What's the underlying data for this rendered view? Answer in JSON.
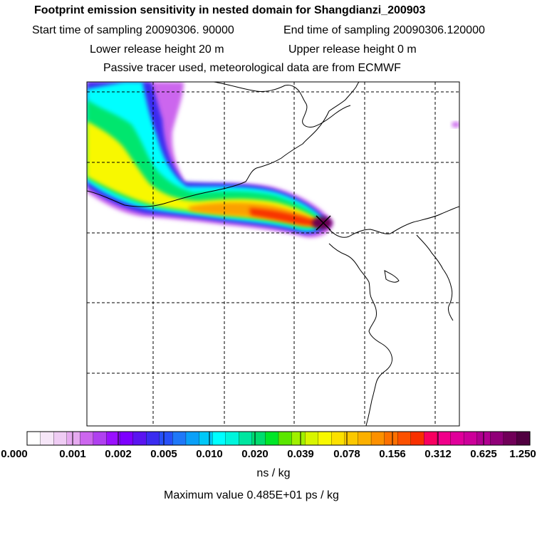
{
  "header": {
    "title": "Footprint emission sensitivity in nested domain for Shangdianzi_200903",
    "start_time": "Start time of sampling 20090306. 90000",
    "end_time": "End time of sampling 20090306.120000",
    "lower_height": "Lower release height   20 m",
    "upper_height": "Upper release height    0 m",
    "tracer_note": "Passive tracer used, meteorological data are from ECMWF"
  },
  "colorbar": {
    "ticks": [
      "0.000",
      "0.001",
      "0.002",
      "0.005",
      "0.010",
      "0.020",
      "0.039",
      "0.078",
      "0.156",
      "0.312",
      "0.625",
      "1.250"
    ],
    "units": "ns / kg",
    "colors": [
      "#ffffff",
      "#f6e6f8",
      "#efccf4",
      "#e6aaf0",
      "#cc66ee",
      "#b040f0",
      "#9a10ff",
      "#7d00ff",
      "#5a14f0",
      "#3a2cf0",
      "#2750f8",
      "#1f78f8",
      "#0aa0f8",
      "#00c8f8",
      "#00ffff",
      "#00f5dc",
      "#00e6a0",
      "#00dc6e",
      "#00e628",
      "#5ae600",
      "#a0f000",
      "#d8f500",
      "#f8f800",
      "#fce000",
      "#fcc800",
      "#fcb000",
      "#fc9000",
      "#fc7000",
      "#fc5000",
      "#f83000",
      "#f80060",
      "#f0008a",
      "#e0009a",
      "#cc0099",
      "#b00090",
      "#900078",
      "#700058",
      "#500040"
    ]
  },
  "footer": {
    "max_value": "Maximum value  0.485E+01 ps / kg"
  },
  "map": {
    "plume_colors": {
      "outer": "#cc66ee",
      "blue": "#3a2cf0",
      "cyan": "#00ffff",
      "green": "#00e66e",
      "yellow": "#f8f800",
      "orange": "#fca000",
      "red": "#f83000",
      "peak": "#6a0050"
    },
    "receptor_marker": "x-marker"
  }
}
